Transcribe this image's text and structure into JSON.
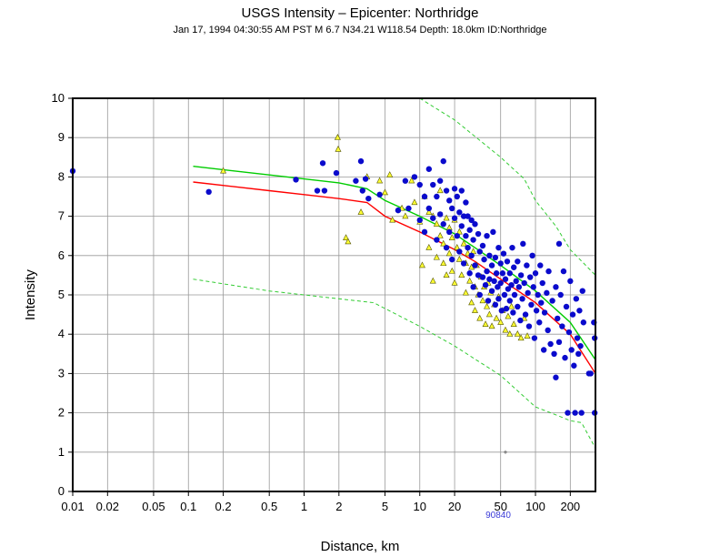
{
  "chart_data": {
    "type": "scatter",
    "title": "USGS Intensity –  Epicenter: Northridge",
    "subtitle": "Jan 17, 1994 04:30:55 AM PST   M 6.7   N34.21 W118.54   Depth: 18.0km   ID:Northridge",
    "xlabel": "Distance, km",
    "ylabel": "Intensity",
    "x_scale": "log",
    "xlim": [
      0.01,
      330
    ],
    "ylim": [
      0,
      10
    ],
    "x_ticks": [
      "0.01",
      "0.02",
      "0.05",
      "0.1",
      "0.2",
      "0.5",
      "1",
      "2",
      "5",
      "10",
      "20",
      "50",
      "100",
      "200"
    ],
    "y_ticks": [
      "0",
      "1",
      "2",
      "3",
      "4",
      "5",
      "6",
      "7",
      "8",
      "9",
      "10"
    ],
    "grid": true,
    "station_label": "90840",
    "station_marker": {
      "x": 55,
      "y": 1.0
    },
    "colors": {
      "dyfi": "#0a0acc",
      "instrumental": "#ffff33",
      "median_curve": "#00cc00",
      "predicted_curve": "#ff0000",
      "bounds_curve": "#33cc33",
      "grid": "#999999"
    },
    "curves": [
      {
        "style": "solid",
        "color_key": "median_curve",
        "points": [
          [
            0.11,
            8.27
          ],
          [
            0.5,
            8.05
          ],
          [
            1,
            7.95
          ],
          [
            2,
            7.85
          ],
          [
            3.5,
            7.7
          ],
          [
            5,
            7.4
          ],
          [
            10,
            7.0
          ],
          [
            20,
            6.55
          ],
          [
            30,
            6.2
          ],
          [
            50,
            5.75
          ],
          [
            100,
            5.1
          ],
          [
            200,
            4.3
          ],
          [
            330,
            3.35
          ]
        ]
      },
      {
        "style": "solid",
        "color_key": "predicted_curve",
        "points": [
          [
            0.11,
            7.87
          ],
          [
            0.5,
            7.65
          ],
          [
            1,
            7.55
          ],
          [
            2,
            7.45
          ],
          [
            3.5,
            7.35
          ],
          [
            5,
            7.0
          ],
          [
            10,
            6.6
          ],
          [
            20,
            6.15
          ],
          [
            30,
            5.85
          ],
          [
            50,
            5.4
          ],
          [
            100,
            4.8
          ],
          [
            200,
            4.0
          ],
          [
            330,
            3.0
          ]
        ]
      },
      {
        "style": "dashed",
        "color_key": "bounds_curve",
        "points": [
          [
            10,
            10.0
          ],
          [
            20,
            9.45
          ],
          [
            50,
            8.5
          ],
          [
            80,
            7.95
          ],
          [
            100,
            7.4
          ],
          [
            150,
            6.75
          ],
          [
            200,
            6.15
          ],
          [
            330,
            5.5
          ]
        ]
      },
      {
        "style": "dashed",
        "color_key": "bounds_curve",
        "points": [
          [
            0.11,
            5.4
          ],
          [
            0.5,
            5.1
          ],
          [
            1,
            5.0
          ],
          [
            2,
            4.9
          ],
          [
            4,
            4.8
          ],
          [
            10,
            4.2
          ],
          [
            20,
            3.7
          ],
          [
            50,
            2.95
          ],
          [
            100,
            2.15
          ],
          [
            150,
            1.95
          ],
          [
            200,
            1.8
          ],
          [
            250,
            1.75
          ],
          [
            330,
            1.1
          ]
        ]
      }
    ],
    "series": [
      {
        "name": "",
        "marker": "circle",
        "color_key": "dyfi",
        "points": [
          [
            0.01,
            8.15
          ],
          [
            0.15,
            7.62
          ],
          [
            0.85,
            7.93
          ],
          [
            1.3,
            7.65
          ],
          [
            1.45,
            8.35
          ],
          [
            1.5,
            7.65
          ],
          [
            1.9,
            8.1
          ],
          [
            2.8,
            7.9
          ],
          [
            3.1,
            8.4
          ],
          [
            3.2,
            7.65
          ],
          [
            3.4,
            7.95
          ],
          [
            3.6,
            7.45
          ],
          [
            4.5,
            7.55
          ],
          [
            6.5,
            7.15
          ],
          [
            7.5,
            7.9
          ],
          [
            8,
            7.2
          ],
          [
            9,
            8.0
          ],
          [
            10,
            7.8
          ],
          [
            10,
            6.9
          ],
          [
            11,
            7.5
          ],
          [
            11,
            6.6
          ],
          [
            12,
            7.2
          ],
          [
            12,
            8.2
          ],
          [
            13,
            7.8
          ],
          [
            13,
            6.95
          ],
          [
            14,
            7.5
          ],
          [
            14,
            6.4
          ],
          [
            15,
            7.9
          ],
          [
            15,
            7.05
          ],
          [
            16,
            8.4
          ],
          [
            16,
            6.8
          ],
          [
            17,
            7.65
          ],
          [
            17,
            6.2
          ],
          [
            18,
            7.4
          ],
          [
            18,
            6.6
          ],
          [
            19,
            7.2
          ],
          [
            19,
            5.9
          ],
          [
            20,
            7.7
          ],
          [
            20,
            6.95
          ],
          [
            21,
            7.5
          ],
          [
            21,
            6.5
          ],
          [
            22,
            7.1
          ],
          [
            22,
            6.1
          ],
          [
            23,
            7.65
          ],
          [
            23,
            6.75
          ],
          [
            24,
            7.0
          ],
          [
            24,
            5.8
          ],
          [
            25,
            6.5
          ],
          [
            25,
            7.35
          ],
          [
            26,
            6.2
          ],
          [
            26,
            7.0
          ],
          [
            27,
            6.65
          ],
          [
            27,
            5.55
          ],
          [
            28,
            6.9
          ],
          [
            28,
            6.0
          ],
          [
            29,
            6.4
          ],
          [
            29,
            5.2
          ],
          [
            30,
            6.8
          ],
          [
            30,
            5.75
          ],
          [
            32,
            6.55
          ],
          [
            32,
            5.5
          ],
          [
            33,
            6.1
          ],
          [
            33,
            5.0
          ],
          [
            35,
            6.25
          ],
          [
            35,
            5.45
          ],
          [
            36,
            5.9
          ],
          [
            37,
            5.25
          ],
          [
            38,
            6.5
          ],
          [
            38,
            5.6
          ],
          [
            39,
            4.85
          ],
          [
            40,
            6.0
          ],
          [
            40,
            5.4
          ],
          [
            42,
            5.75
          ],
          [
            42,
            5.1
          ],
          [
            43,
            6.6
          ],
          [
            44,
            5.35
          ],
          [
            45,
            5.95
          ],
          [
            45,
            4.75
          ],
          [
            46,
            5.55
          ],
          [
            47,
            5.2
          ],
          [
            48,
            6.2
          ],
          [
            48,
            4.9
          ],
          [
            50,
            5.8
          ],
          [
            50,
            5.3
          ],
          [
            51,
            4.6
          ],
          [
            52,
            5.55
          ],
          [
            53,
            6.05
          ],
          [
            54,
            5.0
          ],
          [
            55,
            5.4
          ],
          [
            56,
            4.65
          ],
          [
            57,
            5.85
          ],
          [
            58,
            5.15
          ],
          [
            60,
            5.55
          ],
          [
            60,
            4.85
          ],
          [
            62,
            5.25
          ],
          [
            63,
            6.2
          ],
          [
            64,
            4.55
          ],
          [
            65,
            5.7
          ],
          [
            66,
            5.0
          ],
          [
            68,
            5.35
          ],
          [
            70,
            4.7
          ],
          [
            70,
            5.85
          ],
          [
            72,
            5.2
          ],
          [
            74,
            4.35
          ],
          [
            75,
            5.5
          ],
          [
            77,
            4.9
          ],
          [
            78,
            6.3
          ],
          [
            80,
            5.3
          ],
          [
            82,
            4.5
          ],
          [
            84,
            5.75
          ],
          [
            86,
            5.05
          ],
          [
            88,
            4.2
          ],
          [
            90,
            5.45
          ],
          [
            92,
            4.75
          ],
          [
            94,
            6.0
          ],
          [
            96,
            5.2
          ],
          [
            98,
            3.9
          ],
          [
            100,
            5.55
          ],
          [
            102,
            4.6
          ],
          [
            105,
            5.0
          ],
          [
            108,
            4.3
          ],
          [
            110,
            5.75
          ],
          [
            112,
            4.8
          ],
          [
            115,
            5.3
          ],
          [
            118,
            3.6
          ],
          [
            120,
            4.55
          ],
          [
            125,
            5.05
          ],
          [
            128,
            4.1
          ],
          [
            130,
            5.6
          ],
          [
            135,
            3.75
          ],
          [
            140,
            4.85
          ],
          [
            145,
            3.5
          ],
          [
            150,
            5.2
          ],
          [
            150,
            2.9
          ],
          [
            155,
            4.4
          ],
          [
            160,
            6.3
          ],
          [
            160,
            3.8
          ],
          [
            165,
            5.0
          ],
          [
            170,
            4.2
          ],
          [
            175,
            5.6
          ],
          [
            180,
            3.4
          ],
          [
            185,
            4.7
          ],
          [
            190,
            2.0
          ],
          [
            195,
            4.05
          ],
          [
            200,
            5.35
          ],
          [
            205,
            3.6
          ],
          [
            210,
            4.5
          ],
          [
            215,
            3.2
          ],
          [
            220,
            2.0
          ],
          [
            225,
            4.9
          ],
          [
            230,
            3.9
          ],
          [
            235,
            3.5
          ],
          [
            240,
            4.6
          ],
          [
            245,
            3.7
          ],
          [
            250,
            2.0
          ],
          [
            255,
            5.1
          ],
          [
            260,
            4.3
          ],
          [
            290,
            3.0
          ],
          [
            300,
            3.0
          ],
          [
            320,
            4.3
          ],
          [
            325,
            3.9
          ],
          [
            325,
            2.0
          ]
        ]
      },
      {
        "name": "",
        "marker": "triangle",
        "color_key": "instrumental",
        "points": [
          [
            0.2,
            8.15
          ],
          [
            1.95,
            9.0
          ],
          [
            1.97,
            8.7
          ],
          [
            2.3,
            6.45
          ],
          [
            2.4,
            6.35
          ],
          [
            3.1,
            7.1
          ],
          [
            3.5,
            8.0
          ],
          [
            4.5,
            7.9
          ],
          [
            5,
            7.6
          ],
          [
            5.5,
            8.05
          ],
          [
            5.8,
            6.9
          ],
          [
            7,
            7.2
          ],
          [
            7.5,
            7.0
          ],
          [
            8.5,
            7.9
          ],
          [
            9,
            7.35
          ],
          [
            10,
            6.85
          ],
          [
            10.5,
            5.75
          ],
          [
            11,
            7.5
          ],
          [
            12,
            7.1
          ],
          [
            12,
            6.2
          ],
          [
            13,
            7.0
          ],
          [
            13,
            5.35
          ],
          [
            14,
            6.8
          ],
          [
            14,
            5.95
          ],
          [
            15,
            7.65
          ],
          [
            15,
            6.5
          ],
          [
            16,
            6.3
          ],
          [
            16,
            5.8
          ],
          [
            17,
            6.95
          ],
          [
            17,
            5.5
          ],
          [
            18,
            6.7
          ],
          [
            18,
            6.05
          ],
          [
            19,
            5.6
          ],
          [
            19,
            6.45
          ],
          [
            20,
            6.9
          ],
          [
            20,
            5.3
          ],
          [
            21,
            6.2
          ],
          [
            22,
            5.9
          ],
          [
            22,
            6.6
          ],
          [
            23,
            5.5
          ],
          [
            24,
            6.3
          ],
          [
            25,
            5.8
          ],
          [
            25,
            5.05
          ],
          [
            26,
            6.05
          ],
          [
            27,
            5.35
          ],
          [
            28,
            5.7
          ],
          [
            28,
            4.8
          ],
          [
            29,
            6.1
          ],
          [
            30,
            5.2
          ],
          [
            30,
            4.6
          ],
          [
            31,
            5.75
          ],
          [
            32,
            5.0
          ],
          [
            33,
            4.4
          ],
          [
            34,
            5.45
          ],
          [
            35,
            4.85
          ],
          [
            36,
            5.2
          ],
          [
            37,
            4.25
          ],
          [
            38,
            4.7
          ],
          [
            39,
            5.3
          ],
          [
            40,
            4.5
          ],
          [
            41,
            5.05
          ],
          [
            42,
            4.2
          ],
          [
            44,
            4.75
          ],
          [
            46,
            4.4
          ],
          [
            48,
            4.95
          ],
          [
            50,
            4.3
          ],
          [
            52,
            4.6
          ],
          [
            55,
            4.1
          ],
          [
            58,
            4.45
          ],
          [
            60,
            4.0
          ],
          [
            62,
            4.7
          ],
          [
            65,
            4.25
          ],
          [
            70,
            4.0
          ],
          [
            75,
            3.9
          ],
          [
            80,
            4.4
          ],
          [
            85,
            3.95
          ]
        ]
      }
    ]
  }
}
